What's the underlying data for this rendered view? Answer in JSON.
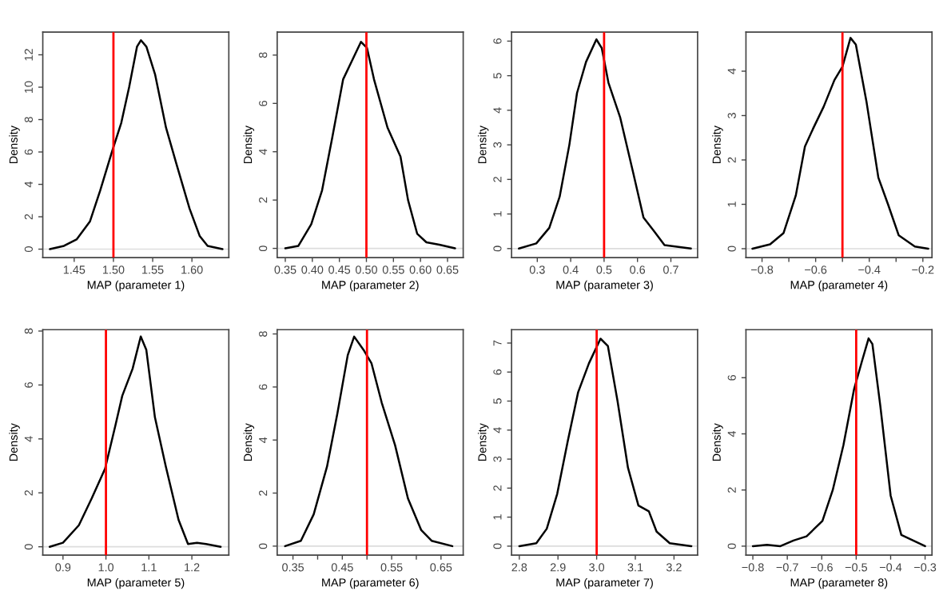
{
  "chart_data": [
    {
      "type": "line",
      "xlabel": "MAP (parameter 1)",
      "ylabel": "Density",
      "xlim": [
        1.41,
        1.647
      ],
      "ylim": [
        -0.52,
        13.4
      ],
      "xticks": [
        {
          "value": 1.45,
          "label": "1.45"
        },
        {
          "value": 1.5,
          "label": "1.50"
        },
        {
          "value": 1.55,
          "label": "1.55"
        },
        {
          "value": 1.6,
          "label": "1.60"
        }
      ],
      "yticks": [
        0,
        2,
        4,
        6,
        8,
        10,
        12
      ],
      "grid": false,
      "legend": false,
      "series": [
        {
          "color": "#000000",
          "x": [
            1.419,
            1.437,
            1.453,
            1.47,
            1.483,
            1.498,
            1.51,
            1.52,
            1.53,
            1.535,
            1.542,
            1.553,
            1.567,
            1.58,
            1.597,
            1.61,
            1.62,
            1.639
          ],
          "values": [
            0,
            0.2,
            0.6,
            1.7,
            3.6,
            6.0,
            7.8,
            10.0,
            12.5,
            12.9,
            12.5,
            10.8,
            7.5,
            5.3,
            2.5,
            0.8,
            0.2,
            0
          ]
        }
      ],
      "ref_lines": [
        {
          "axis": "x",
          "value": 1.5,
          "color": "#ff0000"
        },
        {
          "axis": "y",
          "value": 0,
          "color": "#dddddd"
        }
      ]
    },
    {
      "type": "line",
      "xlabel": "MAP (parameter 2)",
      "ylabel": "Density",
      "xlim": [
        0.335,
        0.679
      ],
      "ylim": [
        -0.38,
        8.95
      ],
      "xticks": [
        {
          "value": 0.35,
          "label": "0.35"
        },
        {
          "value": 0.4,
          "label": "0.40"
        },
        {
          "value": 0.45,
          "label": "0.45"
        },
        {
          "value": 0.5,
          "label": "0.50"
        },
        {
          "value": 0.55,
          "label": "0.55"
        },
        {
          "value": 0.6,
          "label": "0.60"
        },
        {
          "value": 0.65,
          "label": "0.65"
        }
      ],
      "yticks": [
        0,
        2,
        4,
        6,
        8
      ],
      "grid": false,
      "legend": false,
      "series": [
        {
          "color": "#000000",
          "x": [
            0.35,
            0.374,
            0.398,
            0.418,
            0.437,
            0.457,
            0.474,
            0.49,
            0.501,
            0.514,
            0.539,
            0.563,
            0.577,
            0.594,
            0.611,
            0.635,
            0.664
          ],
          "values": [
            0,
            0.1,
            1.0,
            2.4,
            4.6,
            7.0,
            7.8,
            8.55,
            8.3,
            7.0,
            5.0,
            3.8,
            2.0,
            0.6,
            0.25,
            0.15,
            0
          ]
        }
      ],
      "ref_lines": [
        {
          "axis": "x",
          "value": 0.5,
          "color": "#ff0000"
        },
        {
          "axis": "y",
          "value": 0,
          "color": "#dddddd"
        }
      ]
    },
    {
      "type": "line",
      "xlabel": "MAP (parameter 3)",
      "ylabel": "Density",
      "xlim": [
        0.223,
        0.78
      ],
      "ylim": [
        -0.26,
        6.26
      ],
      "xticks": [
        0.3,
        0.4,
        0.5,
        0.6,
        0.7
      ],
      "yticks": [
        0,
        1,
        2,
        3,
        4,
        5,
        6
      ],
      "grid": false,
      "legend": false,
      "series": [
        {
          "color": "#000000",
          "x": [
            0.245,
            0.297,
            0.336,
            0.367,
            0.396,
            0.419,
            0.446,
            0.477,
            0.493,
            0.513,
            0.548,
            0.587,
            0.618,
            0.65,
            0.681,
            0.76
          ],
          "values": [
            0,
            0.15,
            0.6,
            1.5,
            3.0,
            4.5,
            5.4,
            6.05,
            5.8,
            4.8,
            3.8,
            2.2,
            0.9,
            0.5,
            0.1,
            0
          ]
        }
      ],
      "ref_lines": [
        {
          "axis": "x",
          "value": 0.5,
          "color": "#ff0000"
        },
        {
          "axis": "y",
          "value": 0,
          "color": "#dddddd"
        }
      ]
    },
    {
      "type": "line",
      "xlabel": "MAP (parameter 4)",
      "ylabel": "Density",
      "xlim": [
        -0.86,
        -0.166
      ],
      "ylim": [
        -0.2,
        4.88
      ],
      "xticks": [
        {
          "value": -0.8,
          "label": "−0.8"
        },
        {
          "value": -0.7,
          "label": null
        },
        {
          "value": -0.6,
          "label": "−0.6"
        },
        {
          "value": -0.5,
          "label": null
        },
        {
          "value": -0.4,
          "label": "−0.4"
        },
        {
          "value": -0.3,
          "label": null
        },
        {
          "value": -0.2,
          "label": "−0.2"
        }
      ],
      "yticks": [
        0,
        1,
        2,
        3,
        4
      ],
      "grid": false,
      "legend": false,
      "series": [
        {
          "color": "#000000",
          "x": [
            -0.836,
            -0.77,
            -0.72,
            -0.674,
            -0.64,
            -0.61,
            -0.57,
            -0.53,
            -0.5,
            -0.47,
            -0.45,
            -0.41,
            -0.366,
            -0.33,
            -0.29,
            -0.23,
            -0.18
          ],
          "values": [
            0,
            0.1,
            0.35,
            1.2,
            2.3,
            2.7,
            3.2,
            3.8,
            4.1,
            4.75,
            4.6,
            3.3,
            1.6,
            1.0,
            0.3,
            0.05,
            0
          ]
        }
      ],
      "ref_lines": [
        {
          "axis": "x",
          "value": -0.5,
          "color": "#ff0000"
        },
        {
          "axis": "y",
          "value": 0,
          "color": "#dddddd"
        }
      ]
    },
    {
      "type": "line",
      "xlabel": "MAP (parameter 5)",
      "ylabel": "Density",
      "xlim": [
        0.853,
        1.286
      ],
      "ylim": [
        -0.31,
        8.05
      ],
      "xticks": [
        0.9,
        {
          "value": 1.0,
          "label": "1.0"
        },
        1.1,
        1.2
      ],
      "yticks": [
        0,
        2,
        4,
        6,
        8
      ],
      "grid": false,
      "legend": false,
      "series": [
        {
          "color": "#000000",
          "x": [
            0.869,
            0.9,
            0.937,
            0.967,
            0.998,
            1.022,
            1.038,
            1.062,
            1.081,
            1.094,
            1.114,
            1.139,
            1.169,
            1.191,
            1.212,
            1.233,
            1.267
          ],
          "values": [
            0,
            0.15,
            0.8,
            1.8,
            2.9,
            4.5,
            5.6,
            6.6,
            7.8,
            7.3,
            4.8,
            3.0,
            1.0,
            0.1,
            0.15,
            0.1,
            0
          ]
        }
      ],
      "ref_lines": [
        {
          "axis": "x",
          "value": 1.0,
          "color": "#ff0000"
        },
        {
          "axis": "y",
          "value": 0,
          "color": "#dddddd"
        }
      ]
    },
    {
      "type": "line",
      "xlabel": "MAP (parameter 6)",
      "ylabel": "Density",
      "xlim": [
        0.318,
        0.695
      ],
      "ylim": [
        -0.34,
        8.16
      ],
      "xticks": [
        {
          "value": 0.35,
          "label": "0.35"
        },
        {
          "value": 0.4,
          "label": null
        },
        {
          "value": 0.45,
          "label": "0.45"
        },
        {
          "value": 0.5,
          "label": null
        },
        {
          "value": 0.55,
          "label": "0.55"
        },
        {
          "value": 0.6,
          "label": null
        },
        {
          "value": 0.65,
          "label": "0.65"
        }
      ],
      "yticks": [
        0,
        2,
        4,
        6,
        8
      ],
      "grid": false,
      "legend": false,
      "series": [
        {
          "color": "#000000",
          "x": [
            0.334,
            0.366,
            0.392,
            0.419,
            0.44,
            0.461,
            0.474,
            0.493,
            0.509,
            0.53,
            0.557,
            0.583,
            0.61,
            0.631,
            0.673
          ],
          "values": [
            0,
            0.2,
            1.2,
            3.0,
            5.0,
            7.2,
            7.9,
            7.4,
            6.9,
            5.4,
            3.8,
            1.8,
            0.6,
            0.2,
            0
          ]
        }
      ],
      "ref_lines": [
        {
          "axis": "x",
          "value": 0.5,
          "color": "#ff0000"
        },
        {
          "axis": "y",
          "value": 0,
          "color": "#dddddd"
        }
      ]
    },
    {
      "type": "line",
      "xlabel": "MAP (parameter 7)",
      "ylabel": "Density",
      "xlim": [
        2.78,
        3.261
      ],
      "ylim": [
        -0.31,
        7.46
      ],
      "xticks": [
        2.8,
        2.9,
        {
          "value": 3.0,
          "label": "3.0"
        },
        3.1,
        3.2
      ],
      "yticks": [
        0,
        1,
        2,
        3,
        4,
        5,
        6,
        7
      ],
      "grid": false,
      "legend": false,
      "series": [
        {
          "color": "#000000",
          "x": [
            2.8,
            2.844,
            2.871,
            2.898,
            2.925,
            2.952,
            2.98,
            3.01,
            3.029,
            3.054,
            3.081,
            3.108,
            3.135,
            3.155,
            3.189,
            3.245
          ],
          "values": [
            0,
            0.1,
            0.6,
            1.8,
            3.6,
            5.3,
            6.3,
            7.15,
            6.9,
            5.0,
            2.7,
            1.4,
            1.2,
            0.5,
            0.1,
            0
          ]
        }
      ],
      "ref_lines": [
        {
          "axis": "x",
          "value": 3.0,
          "color": "#ff0000"
        },
        {
          "axis": "y",
          "value": 0,
          "color": "#dddddd"
        }
      ]
    },
    {
      "type": "line",
      "xlabel": "MAP (parameter 8)",
      "ylabel": "Density",
      "xlim": [
        -0.82,
        -0.28
      ],
      "ylim": [
        -0.32,
        7.71
      ],
      "xticks": [
        {
          "value": -0.8,
          "label": "−0.8"
        },
        {
          "value": -0.7,
          "label": "−0.7"
        },
        {
          "value": -0.6,
          "label": "−0.6"
        },
        {
          "value": -0.5,
          "label": "−0.5"
        },
        {
          "value": -0.4,
          "label": "−0.4"
        },
        {
          "value": -0.3,
          "label": "−0.3"
        }
      ],
      "yticks": [
        0,
        2,
        4,
        6
      ],
      "grid": false,
      "legend": false,
      "series": [
        {
          "color": "#000000",
          "x": [
            -0.8,
            -0.759,
            -0.72,
            -0.682,
            -0.644,
            -0.598,
            -0.568,
            -0.537,
            -0.506,
            -0.483,
            -0.464,
            -0.453,
            -0.43,
            -0.4,
            -0.369,
            -0.3
          ],
          "values": [
            0,
            0.05,
            0,
            0.2,
            0.35,
            0.9,
            2.0,
            3.6,
            5.6,
            6.6,
            7.4,
            7.2,
            5.0,
            1.8,
            0.4,
            0
          ]
        }
      ],
      "ref_lines": [
        {
          "axis": "x",
          "value": -0.5,
          "color": "#ff0000"
        },
        {
          "axis": "y",
          "value": 0,
          "color": "#dddddd"
        }
      ]
    }
  ]
}
